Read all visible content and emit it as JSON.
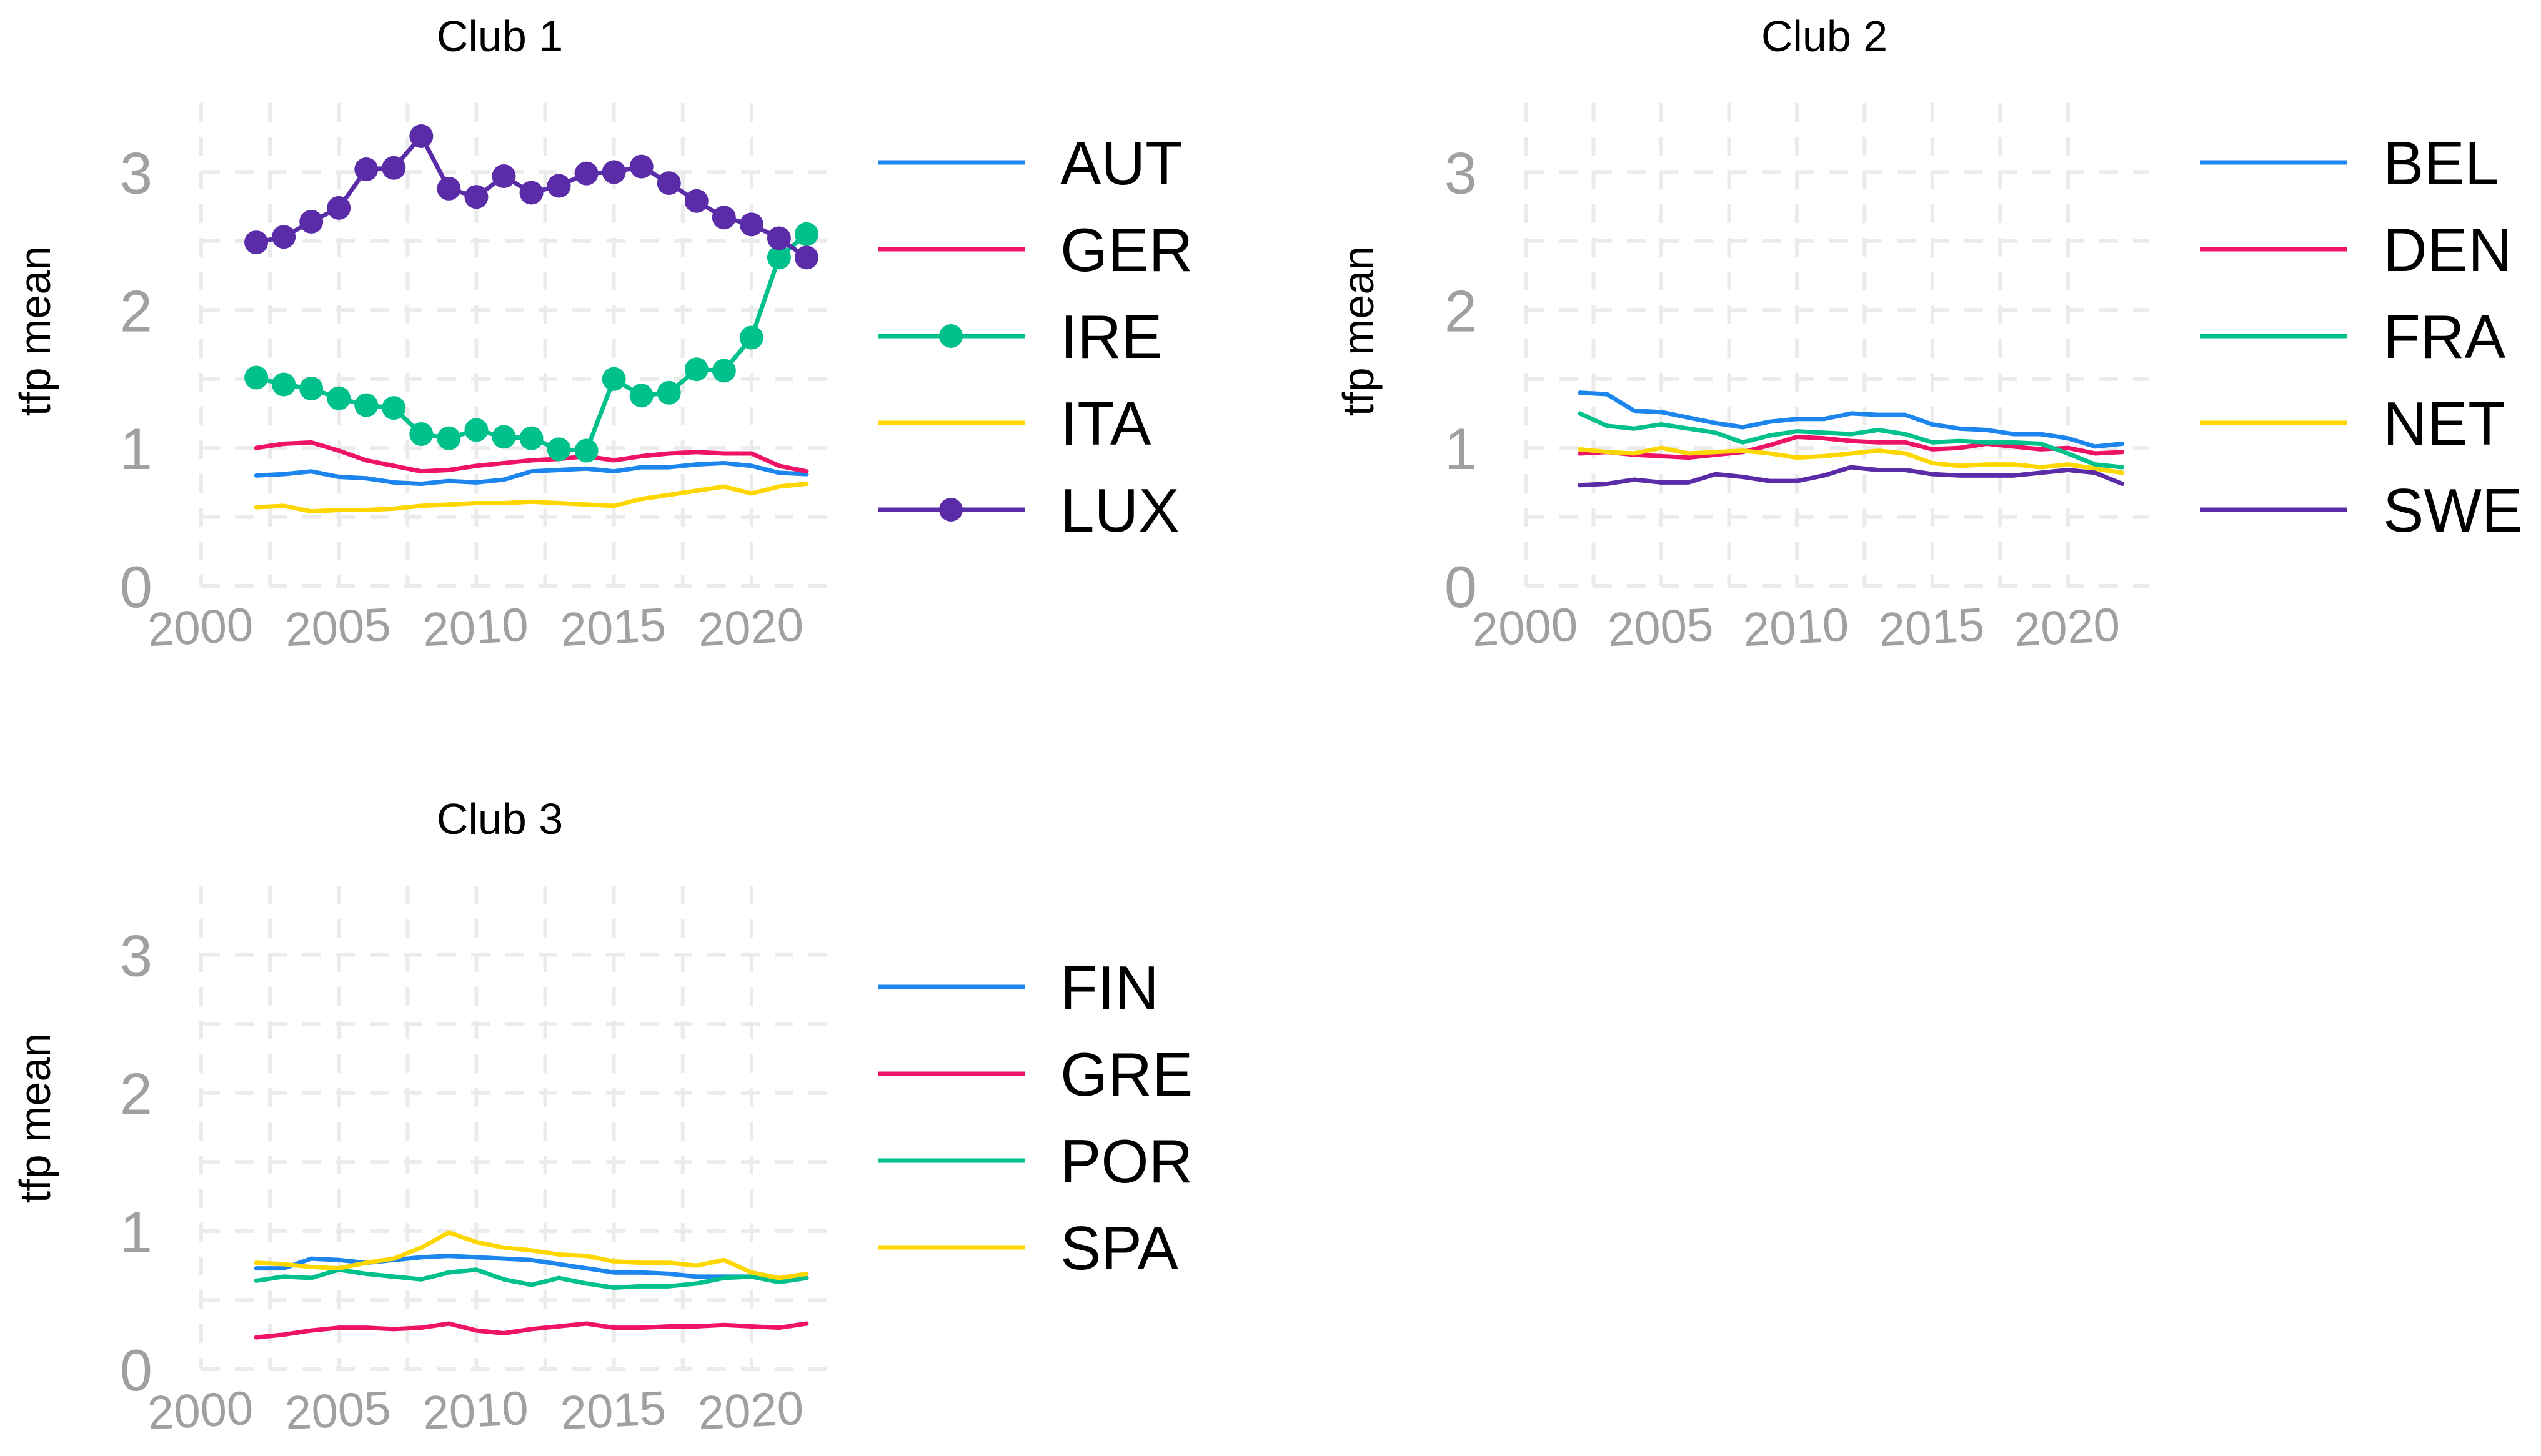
{
  "chart_data": [
    {
      "type": "line",
      "title": "Club 1",
      "xlabel": "",
      "ylabel": "tfp mean",
      "xlim": [
        2000,
        2023
      ],
      "ylim": [
        0,
        3.5
      ],
      "xticks": [
        2000,
        2005,
        2010,
        2015,
        2020
      ],
      "yticks": [
        0,
        1,
        2,
        3
      ],
      "legend_position": "right",
      "series": [
        {
          "name": "AUT",
          "color": "#1c86ee",
          "markers": false,
          "x": [
            2002,
            2003,
            2004,
            2005,
            2006,
            2007,
            2008,
            2009,
            2010,
            2011,
            2012,
            2013,
            2014,
            2015,
            2016,
            2017,
            2018,
            2019,
            2020,
            2021,
            2022
          ],
          "values": [
            0.8,
            0.81,
            0.83,
            0.79,
            0.78,
            0.75,
            0.74,
            0.76,
            0.75,
            0.77,
            0.83,
            0.84,
            0.85,
            0.83,
            0.86,
            0.86,
            0.88,
            0.89,
            0.87,
            0.82,
            0.81
          ]
        },
        {
          "name": "GER",
          "color": "#ee1364",
          "markers": false,
          "x": [
            2002,
            2003,
            2004,
            2005,
            2006,
            2007,
            2008,
            2009,
            2010,
            2011,
            2012,
            2013,
            2014,
            2015,
            2016,
            2017,
            2018,
            2019,
            2020,
            2021,
            2022
          ],
          "values": [
            1.0,
            1.03,
            1.04,
            0.98,
            0.91,
            0.87,
            0.83,
            0.84,
            0.87,
            0.89,
            0.91,
            0.92,
            0.94,
            0.91,
            0.94,
            0.96,
            0.97,
            0.96,
            0.96,
            0.87,
            0.83
          ]
        },
        {
          "name": "IRE",
          "color": "#00c08b",
          "markers": true,
          "x": [
            2002,
            2003,
            2004,
            2005,
            2006,
            2007,
            2008,
            2009,
            2010,
            2011,
            2012,
            2013,
            2014,
            2015,
            2016,
            2017,
            2018,
            2019,
            2020,
            2021,
            2022
          ],
          "values": [
            1.51,
            1.46,
            1.43,
            1.36,
            1.31,
            1.29,
            1.1,
            1.07,
            1.13,
            1.08,
            1.07,
            0.99,
            0.98,
            1.5,
            1.38,
            1.4,
            1.57,
            1.56,
            1.8,
            2.38,
            2.55
          ]
        },
        {
          "name": "ITA",
          "color": "#ffd700",
          "markers": false,
          "x": [
            2002,
            2003,
            2004,
            2005,
            2006,
            2007,
            2008,
            2009,
            2010,
            2011,
            2012,
            2013,
            2014,
            2015,
            2016,
            2017,
            2018,
            2019,
            2020,
            2021,
            2022
          ],
          "values": [
            0.57,
            0.58,
            0.54,
            0.55,
            0.55,
            0.56,
            0.58,
            0.59,
            0.6,
            0.6,
            0.61,
            0.6,
            0.59,
            0.58,
            0.63,
            0.66,
            0.69,
            0.72,
            0.67,
            0.72,
            0.74
          ]
        },
        {
          "name": "LUX",
          "color": "#5a2ca8",
          "markers": true,
          "x": [
            2002,
            2003,
            2004,
            2005,
            2006,
            2007,
            2008,
            2009,
            2010,
            2011,
            2012,
            2013,
            2014,
            2015,
            2016,
            2017,
            2018,
            2019,
            2020,
            2021,
            2022
          ],
          "values": [
            2.49,
            2.53,
            2.64,
            2.74,
            3.02,
            3.03,
            3.26,
            2.88,
            2.82,
            2.97,
            2.85,
            2.9,
            2.99,
            3.0,
            3.04,
            2.92,
            2.79,
            2.67,
            2.62,
            2.52,
            2.38
          ]
        }
      ]
    },
    {
      "type": "line",
      "title": "Club 2",
      "xlabel": "",
      "ylabel": "tfp mean",
      "xlim": [
        2000,
        2023
      ],
      "ylim": [
        0,
        3.5
      ],
      "xticks": [
        2000,
        2005,
        2010,
        2015,
        2020
      ],
      "yticks": [
        0,
        1,
        2,
        3
      ],
      "legend_position": "right",
      "series": [
        {
          "name": "BEL",
          "color": "#1c86ee",
          "markers": false,
          "x": [
            2002,
            2003,
            2004,
            2005,
            2006,
            2007,
            2008,
            2009,
            2010,
            2011,
            2012,
            2013,
            2014,
            2015,
            2016,
            2017,
            2018,
            2019,
            2020,
            2021,
            2022
          ],
          "values": [
            1.4,
            1.39,
            1.27,
            1.26,
            1.22,
            1.18,
            1.15,
            1.19,
            1.21,
            1.21,
            1.25,
            1.24,
            1.24,
            1.17,
            1.14,
            1.13,
            1.1,
            1.1,
            1.07,
            1.01,
            1.03
          ]
        },
        {
          "name": "DEN",
          "color": "#ee1364",
          "markers": false,
          "x": [
            2002,
            2003,
            2004,
            2005,
            2006,
            2007,
            2008,
            2009,
            2010,
            2011,
            2012,
            2013,
            2014,
            2015,
            2016,
            2017,
            2018,
            2019,
            2020,
            2021,
            2022
          ],
          "values": [
            0.96,
            0.97,
            0.95,
            0.94,
            0.93,
            0.95,
            0.97,
            1.02,
            1.08,
            1.07,
            1.05,
            1.04,
            1.04,
            0.99,
            1.0,
            1.03,
            1.01,
            0.99,
            1.0,
            0.96,
            0.97
          ]
        },
        {
          "name": "FRA",
          "color": "#00c08b",
          "markers": false,
          "x": [
            2002,
            2003,
            2004,
            2005,
            2006,
            2007,
            2008,
            2009,
            2010,
            2011,
            2012,
            2013,
            2014,
            2015,
            2016,
            2017,
            2018,
            2019,
            2020,
            2021,
            2022
          ],
          "values": [
            1.25,
            1.16,
            1.14,
            1.17,
            1.14,
            1.11,
            1.04,
            1.09,
            1.12,
            1.11,
            1.1,
            1.13,
            1.1,
            1.04,
            1.05,
            1.04,
            1.04,
            1.03,
            0.96,
            0.88,
            0.86
          ]
        },
        {
          "name": "NET",
          "color": "#ffd700",
          "markers": false,
          "x": [
            2002,
            2003,
            2004,
            2005,
            2006,
            2007,
            2008,
            2009,
            2010,
            2011,
            2012,
            2013,
            2014,
            2015,
            2016,
            2017,
            2018,
            2019,
            2020,
            2021,
            2022
          ],
          "values": [
            0.99,
            0.97,
            0.96,
            1.0,
            0.96,
            0.97,
            0.98,
            0.96,
            0.93,
            0.94,
            0.96,
            0.98,
            0.96,
            0.89,
            0.87,
            0.88,
            0.88,
            0.86,
            0.88,
            0.85,
            0.82
          ]
        },
        {
          "name": "SWE",
          "color": "#5a2ca8",
          "markers": false,
          "x": [
            2002,
            2003,
            2004,
            2005,
            2006,
            2007,
            2008,
            2009,
            2010,
            2011,
            2012,
            2013,
            2014,
            2015,
            2016,
            2017,
            2018,
            2019,
            2020,
            2021,
            2022
          ],
          "values": [
            0.73,
            0.74,
            0.77,
            0.75,
            0.75,
            0.81,
            0.79,
            0.76,
            0.76,
            0.8,
            0.86,
            0.84,
            0.84,
            0.81,
            0.8,
            0.8,
            0.8,
            0.82,
            0.84,
            0.82,
            0.74
          ]
        }
      ]
    },
    {
      "type": "line",
      "title": "Club 3",
      "xlabel": "",
      "ylabel": "tfp mean",
      "xlim": [
        2000,
        2023
      ],
      "ylim": [
        0,
        3.5
      ],
      "xticks": [
        2000,
        2005,
        2010,
        2015,
        2020
      ],
      "yticks": [
        0,
        1,
        2,
        3
      ],
      "legend_position": "right",
      "series": [
        {
          "name": "FIN",
          "color": "#1c86ee",
          "markers": false,
          "x": [
            2002,
            2003,
            2004,
            2005,
            2006,
            2007,
            2008,
            2009,
            2010,
            2011,
            2012,
            2013,
            2014,
            2015,
            2016,
            2017,
            2018,
            2019,
            2020,
            2021,
            2022
          ],
          "values": [
            0.73,
            0.73,
            0.8,
            0.79,
            0.77,
            0.79,
            0.81,
            0.82,
            0.81,
            0.8,
            0.79,
            0.76,
            0.73,
            0.7,
            0.7,
            0.69,
            0.67,
            0.67,
            0.67,
            0.66,
            0.66
          ]
        },
        {
          "name": "GRE",
          "color": "#ee1364",
          "markers": false,
          "x": [
            2002,
            2003,
            2004,
            2005,
            2006,
            2007,
            2008,
            2009,
            2010,
            2011,
            2012,
            2013,
            2014,
            2015,
            2016,
            2017,
            2018,
            2019,
            2020,
            2021,
            2022
          ],
          "values": [
            0.23,
            0.25,
            0.28,
            0.3,
            0.3,
            0.29,
            0.3,
            0.33,
            0.28,
            0.26,
            0.29,
            0.31,
            0.33,
            0.3,
            0.3,
            0.31,
            0.31,
            0.32,
            0.31,
            0.3,
            0.33
          ]
        },
        {
          "name": "POR",
          "color": "#00c08b",
          "markers": false,
          "x": [
            2002,
            2003,
            2004,
            2005,
            2006,
            2007,
            2008,
            2009,
            2010,
            2011,
            2012,
            2013,
            2014,
            2015,
            2016,
            2017,
            2018,
            2019,
            2020,
            2021,
            2022
          ],
          "values": [
            0.64,
            0.67,
            0.66,
            0.72,
            0.69,
            0.67,
            0.65,
            0.7,
            0.72,
            0.65,
            0.61,
            0.66,
            0.62,
            0.59,
            0.6,
            0.6,
            0.62,
            0.66,
            0.67,
            0.63,
            0.66
          ]
        },
        {
          "name": "SPA",
          "color": "#ffd700",
          "markers": false,
          "x": [
            2002,
            2003,
            2004,
            2005,
            2006,
            2007,
            2008,
            2009,
            2010,
            2011,
            2012,
            2013,
            2014,
            2015,
            2016,
            2017,
            2018,
            2019,
            2020,
            2021,
            2022
          ],
          "values": [
            0.77,
            0.76,
            0.74,
            0.73,
            0.77,
            0.8,
            0.88,
            0.99,
            0.92,
            0.88,
            0.86,
            0.83,
            0.82,
            0.78,
            0.77,
            0.77,
            0.75,
            0.79,
            0.7,
            0.66,
            0.69
          ]
        }
      ]
    }
  ]
}
